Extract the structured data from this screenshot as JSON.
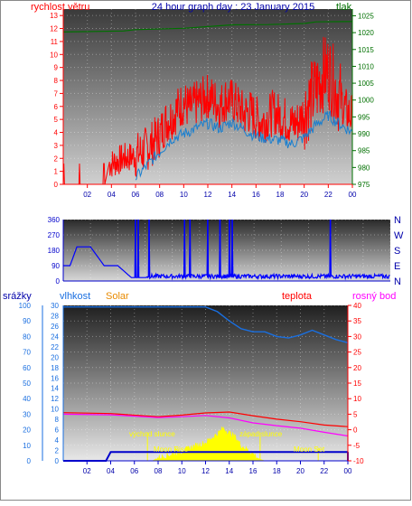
{
  "chart_data": [
    {
      "type": "line",
      "title": "24 hour graph day : 23 January 2015",
      "y_left_label": "rychlost větru",
      "y_right_label": "tlak",
      "x_ticks": [
        "02",
        "04",
        "06",
        "08",
        "10",
        "12",
        "14",
        "16",
        "18",
        "20",
        "22",
        "00"
      ],
      "y_left_ticks": [
        0,
        1,
        2,
        3,
        4,
        5,
        6,
        7,
        8,
        9,
        10,
        11,
        12,
        13
      ],
      "y_left_range": [
        0,
        13.5
      ],
      "y_right_ticks": [
        975,
        980,
        985,
        990,
        995,
        1000,
        1005,
        1010,
        1015,
        1020,
        1025
      ],
      "y_right_range": [
        975,
        1027
      ],
      "series": [
        {
          "name": "rychlost větru",
          "color": "#ff0000",
          "points": [
            [
              0,
              0
            ],
            [
              1.5,
              1.6
            ],
            [
              3,
              1.5
            ],
            [
              4,
              1.6
            ],
            [
              5,
              2
            ],
            [
              6,
              2.2
            ],
            [
              6.5,
              2.5
            ],
            [
              7,
              2.8
            ],
            [
              7.5,
              3.3
            ],
            [
              8,
              3.8
            ],
            [
              8.5,
              4.8
            ],
            [
              9,
              5.2
            ],
            [
              9.5,
              5.8
            ],
            [
              10,
              6.3
            ],
            [
              10.5,
              5.8
            ],
            [
              11,
              6.2
            ],
            [
              12,
              6.8
            ],
            [
              12.5,
              6.5
            ],
            [
              13,
              6.0
            ],
            [
              13.5,
              6.6
            ],
            [
              14,
              6.4
            ],
            [
              14.5,
              6.0
            ],
            [
              15,
              5.4
            ],
            [
              15.5,
              5.6
            ],
            [
              16,
              5.1
            ],
            [
              16.5,
              4.8
            ],
            [
              17,
              5.2
            ],
            [
              17.5,
              5.6
            ],
            [
              18,
              5.2
            ],
            [
              18.5,
              5.0
            ],
            [
              19,
              4.6
            ],
            [
              19.5,
              4.8
            ],
            [
              20,
              5.6
            ],
            [
              20.5,
              6.5
            ],
            [
              21,
              7.3
            ],
            [
              21.5,
              8.4
            ],
            [
              22,
              8.8
            ],
            [
              22.5,
              7.6
            ],
            [
              23,
              6.6
            ],
            [
              23.5,
              5.6
            ],
            [
              24,
              5.2
            ]
          ]
        },
        {
          "name": "",
          "color": "#1a7fcf",
          "points": [
            [
              6,
              0.5
            ],
            [
              7,
              1.5
            ],
            [
              8,
              2.5
            ],
            [
              9,
              3.5
            ],
            [
              10,
              3.9
            ],
            [
              11,
              4.3
            ],
            [
              12,
              4.7
            ],
            [
              13,
              4.3
            ],
            [
              14,
              4.8
            ],
            [
              15,
              4.2
            ],
            [
              16,
              3.7
            ],
            [
              17,
              3.5
            ],
            [
              18,
              3.4
            ],
            [
              19,
              3.1
            ],
            [
              20,
              3.6
            ],
            [
              21,
              4.6
            ],
            [
              22,
              5.3
            ],
            [
              23,
              4.6
            ],
            [
              24,
              4.0
            ]
          ]
        },
        {
          "name": "tlak",
          "color": "#007000",
          "points": [
            [
              0,
              1020.2
            ],
            [
              5,
              1020.5
            ],
            [
              6,
              1020.9
            ],
            [
              10,
              1021.3
            ],
            [
              14,
              1022.3
            ],
            [
              17,
              1022.4
            ],
            [
              20,
              1022.7
            ],
            [
              21,
              1023.2
            ],
            [
              24,
              1023.3
            ]
          ]
        }
      ]
    },
    {
      "type": "line",
      "title": "",
      "y_left_ticks": [
        0,
        90,
        180,
        270,
        360
      ],
      "y_left_range": [
        0,
        360
      ],
      "y_right_ticks": [
        "N",
        "W",
        "S",
        "E",
        "N"
      ],
      "x_ticks": [],
      "series": [
        {
          "name": "",
          "color": "#0000ff",
          "points": [
            [
              0,
              90
            ],
            [
              0.5,
              90
            ],
            [
              1,
              200
            ],
            [
              2,
              200
            ],
            [
              3,
              90
            ],
            [
              4,
              90
            ],
            [
              5,
              20
            ],
            [
              6,
              20
            ],
            [
              24,
              20
            ]
          ]
        }
      ],
      "spikes_x": [
        5.3,
        5.5,
        6.3,
        8.9,
        9.3,
        10.6,
        11.5,
        12.2,
        12.4,
        19.6
      ]
    },
    {
      "type": "line",
      "title": "",
      "labels": {
        "srazky": "srážky",
        "vlhkost": "vlhkost",
        "solar": "Solar",
        "teplota": "teplota",
        "rosny_bod": "rosný bod"
      },
      "y_left_ticks": [
        0,
        10,
        20,
        30,
        40,
        50,
        60,
        70,
        80,
        90,
        100
      ],
      "y_left_range": [
        0,
        100
      ],
      "y_inner_ticks": [
        0,
        2,
        4,
        6,
        8,
        10,
        12,
        14,
        16,
        18,
        20,
        22,
        24,
        26,
        28,
        30
      ],
      "y_inner_range": [
        0,
        30
      ],
      "y_right_ticks": [
        -10,
        -5,
        0,
        5,
        10,
        15,
        20,
        25,
        30,
        35,
        40
      ],
      "y_right_range": [
        -10,
        40
      ],
      "x_ticks": [
        "02",
        "04",
        "06",
        "08",
        "10",
        "12",
        "14",
        "16",
        "18",
        "20",
        "22",
        "00"
      ],
      "annotations": [
        "východ slunce",
        "západ slunce",
        "Moon Rise",
        "Moon Set"
      ],
      "series": [
        {
          "name": "vlhkost",
          "color": "#1a6fe0",
          "points": [
            [
              0,
              99
            ],
            [
              12,
              99
            ],
            [
              13,
              96
            ],
            [
              14,
              90
            ],
            [
              15,
              85
            ],
            [
              16,
              83
            ],
            [
              17,
              83
            ],
            [
              18,
              80
            ],
            [
              19,
              79
            ],
            [
              20,
              81
            ],
            [
              21,
              84
            ],
            [
              22,
              81
            ],
            [
              23,
              78
            ],
            [
              24,
              76
            ]
          ]
        },
        {
          "name": "teplota",
          "color": "#ff0000",
          "points": [
            [
              0,
              5.5
            ],
            [
              4,
              5.2
            ],
            [
              8,
              4.2
            ],
            [
              10,
              4.7
            ],
            [
              12,
              5.4
            ],
            [
              14,
              5.7
            ],
            [
              16,
              4.5
            ],
            [
              18,
              3.4
            ],
            [
              20,
              2.6
            ],
            [
              22,
              1.5
            ],
            [
              24,
              1.0
            ]
          ]
        },
        {
          "name": "rosný bod",
          "color": "#ff00ff",
          "points": [
            [
              0,
              5.0
            ],
            [
              4,
              4.8
            ],
            [
              8,
              3.9
            ],
            [
              10,
              4.2
            ],
            [
              12,
              4.6
            ],
            [
              14,
              3.8
            ],
            [
              16,
              2.2
            ],
            [
              18,
              1.3
            ],
            [
              20,
              0.5
            ],
            [
              22,
              -0.8
            ],
            [
              24,
              -2.0
            ]
          ]
        },
        {
          "name": "srážky",
          "color": "#0000cc",
          "points": [
            [
              0,
              0
            ],
            [
              3.6,
              0
            ],
            [
              4,
              1.7
            ],
            [
              24,
              1.7
            ]
          ]
        },
        {
          "name": "Solar",
          "color": "#ffff00",
          "points": [
            [
              7.5,
              0
            ],
            [
              8,
              0.6
            ],
            [
              9,
              1.2
            ],
            [
              10,
              1.8
            ],
            [
              11,
              2.8
            ],
            [
              12,
              3.5
            ],
            [
              12.5,
              4.4
            ],
            [
              13,
              5.2
            ],
            [
              13.5,
              6.3
            ],
            [
              14,
              5.4
            ],
            [
              14.5,
              4.6
            ],
            [
              15,
              3.0
            ],
            [
              16,
              1.4
            ],
            [
              16.5,
              0.4
            ],
            [
              17,
              0
            ]
          ]
        }
      ]
    }
  ],
  "colors": {
    "title": "#0000aa",
    "wind": "#ff0000",
    "pressure": "#007000",
    "humidity": "#1a6fe0",
    "solar": "#e88a00",
    "temp": "#ff0000",
    "dew": "#ff00ff"
  }
}
